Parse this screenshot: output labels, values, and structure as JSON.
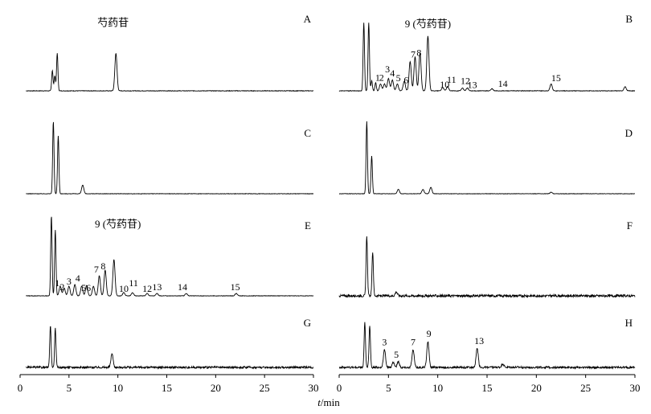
{
  "chart_data": {
    "type": "line",
    "title": "",
    "xlabel_italic": "t",
    "xlabel_rest": "/min",
    "xticks": [
      "0",
      "5",
      "10",
      "15",
      "20",
      "25",
      "30"
    ],
    "xlim": [
      0,
      30
    ],
    "grid": false,
    "line_color": "#000000",
    "panels": [
      {
        "label": "A",
        "column": "left",
        "row": 0,
        "peaks": [
          [
            3.3,
            0.3
          ],
          [
            3.55,
            0.22
          ],
          [
            3.8,
            0.55
          ],
          [
            9.8,
            0.55
          ]
        ],
        "noise": 0.004,
        "annotations": [
          {
            "text": "芍药苷",
            "x": 9.5,
            "y": 0.95
          }
        ]
      },
      {
        "label": "B",
        "column": "right",
        "row": 0,
        "peaks": [
          [
            2.5,
            1.0
          ],
          [
            3.0,
            1.0
          ],
          [
            3.3,
            0.15
          ],
          [
            3.7,
            0.12
          ],
          [
            4.2,
            0.1
          ],
          [
            4.6,
            0.1
          ],
          [
            5.0,
            0.18
          ],
          [
            5.4,
            0.16
          ],
          [
            5.9,
            0.1
          ],
          [
            6.6,
            0.14
          ],
          [
            7.2,
            0.43
          ],
          [
            7.7,
            0.5
          ],
          [
            8.2,
            0.55
          ],
          [
            9.0,
            0.8
          ],
          [
            10.5,
            0.05
          ],
          [
            11.0,
            0.06
          ],
          [
            12.5,
            0.04
          ],
          [
            13.0,
            0.04
          ],
          [
            15.5,
            0.03
          ],
          [
            21.5,
            0.1
          ],
          [
            29.0,
            0.06
          ]
        ],
        "noise": 0.004,
        "annotations": [
          {
            "text": "9 (芍药苷)",
            "x": 9.0,
            "y": 0.93
          },
          {
            "text": "1",
            "x": 3.9,
            "y": 0.15
          },
          {
            "text": "2",
            "x": 4.3,
            "y": 0.15
          },
          {
            "text": "3",
            "x": 4.9,
            "y": 0.27
          },
          {
            "text": "4",
            "x": 5.4,
            "y": 0.21
          },
          {
            "text": "5",
            "x": 6.0,
            "y": 0.14
          },
          {
            "text": "6",
            "x": 6.8,
            "y": 0.11
          },
          {
            "text": "7",
            "x": 7.5,
            "y": 0.49
          },
          {
            "text": "8",
            "x": 8.1,
            "y": 0.51
          },
          {
            "text": "10",
            "x": 10.7,
            "y": 0.05
          },
          {
            "text": "11",
            "x": 11.4,
            "y": 0.12
          },
          {
            "text": "12",
            "x": 12.8,
            "y": 0.1
          },
          {
            "text": "13",
            "x": 13.5,
            "y": 0.04
          },
          {
            "text": "14",
            "x": 16.6,
            "y": 0.06
          },
          {
            "text": "15",
            "x": 22.0,
            "y": 0.14
          }
        ]
      },
      {
        "label": "C",
        "column": "left",
        "row": 1,
        "peaks": [
          [
            3.4,
            1.0
          ],
          [
            3.9,
            0.8
          ],
          [
            6.4,
            0.12
          ]
        ],
        "noise": 0.003,
        "annotations": []
      },
      {
        "label": "D",
        "column": "right",
        "row": 1,
        "peaks": [
          [
            2.8,
            1.0
          ],
          [
            3.3,
            0.52
          ],
          [
            6.0,
            0.06
          ],
          [
            8.5,
            0.06
          ],
          [
            9.3,
            0.09
          ],
          [
            21.5,
            0.02
          ]
        ],
        "noise": 0.003,
        "annotations": []
      },
      {
        "label": "E",
        "column": "left",
        "row": 2,
        "peaks": [
          [
            3.2,
            1.0
          ],
          [
            3.6,
            0.82
          ],
          [
            4.1,
            0.12
          ],
          [
            4.5,
            0.1
          ],
          [
            5.0,
            0.12
          ],
          [
            5.6,
            0.14
          ],
          [
            6.3,
            0.12
          ],
          [
            6.8,
            0.13
          ],
          [
            7.5,
            0.12
          ],
          [
            8.1,
            0.25
          ],
          [
            8.7,
            0.32
          ],
          [
            9.6,
            0.45
          ],
          [
            10.6,
            0.04
          ],
          [
            11.5,
            0.04
          ],
          [
            13.0,
            0.03
          ],
          [
            14.0,
            0.03
          ],
          [
            17.0,
            0.03
          ],
          [
            22.1,
            0.03
          ]
        ],
        "noise": 0.003,
        "annotations": [
          {
            "text": "9 (芍药苷)",
            "x": 10.0,
            "y": 0.85
          },
          {
            "text": "1",
            "x": 3.8,
            "y": 0.12
          },
          {
            "text": "2",
            "x": 4.3,
            "y": 0.07
          },
          {
            "text": "3",
            "x": 5.0,
            "y": 0.14
          },
          {
            "text": "4",
            "x": 5.9,
            "y": 0.18
          },
          {
            "text": "5",
            "x": 6.5,
            "y": 0.06
          },
          {
            "text": "6",
            "x": 7.0,
            "y": 0.06
          },
          {
            "text": "7",
            "x": 7.8,
            "y": 0.29
          },
          {
            "text": "8",
            "x": 8.5,
            "y": 0.33
          },
          {
            "text": "10",
            "x": 10.6,
            "y": 0.05
          },
          {
            "text": "11",
            "x": 11.6,
            "y": 0.12
          },
          {
            "text": "12",
            "x": 13.0,
            "y": 0.05
          },
          {
            "text": "13",
            "x": 14.0,
            "y": 0.07
          },
          {
            "text": "14",
            "x": 16.6,
            "y": 0.07
          },
          {
            "text": "15",
            "x": 22.0,
            "y": 0.07
          }
        ]
      },
      {
        "label": "F",
        "column": "right",
        "row": 2,
        "peaks": [
          [
            2.8,
            0.75
          ],
          [
            3.4,
            0.55
          ],
          [
            5.8,
            0.05
          ]
        ],
        "noise": 0.015,
        "annotations": []
      },
      {
        "label": "G",
        "column": "left",
        "row": 3,
        "peaks": [
          [
            3.1,
            0.85
          ],
          [
            3.6,
            0.78
          ],
          [
            9.4,
            0.28
          ]
        ],
        "noise": 0.02,
        "annotations": []
      },
      {
        "label": "H",
        "column": "right",
        "row": 3,
        "peaks": [
          [
            2.6,
            0.9
          ],
          [
            3.1,
            0.85
          ],
          [
            4.6,
            0.35
          ],
          [
            5.5,
            0.1
          ],
          [
            6.0,
            0.12
          ],
          [
            7.5,
            0.35
          ],
          [
            9.0,
            0.52
          ],
          [
            14.0,
            0.38
          ],
          [
            16.6,
            0.07
          ]
        ],
        "noise": 0.02,
        "annotations": [
          {
            "text": "3",
            "x": 4.6,
            "y": 0.44
          },
          {
            "text": "5",
            "x": 5.8,
            "y": 0.19
          },
          {
            "text": "7",
            "x": 7.5,
            "y": 0.44
          },
          {
            "text": "9",
            "x": 9.1,
            "y": 0.61
          },
          {
            "text": "13",
            "x": 14.2,
            "y": 0.47
          }
        ]
      }
    ]
  }
}
